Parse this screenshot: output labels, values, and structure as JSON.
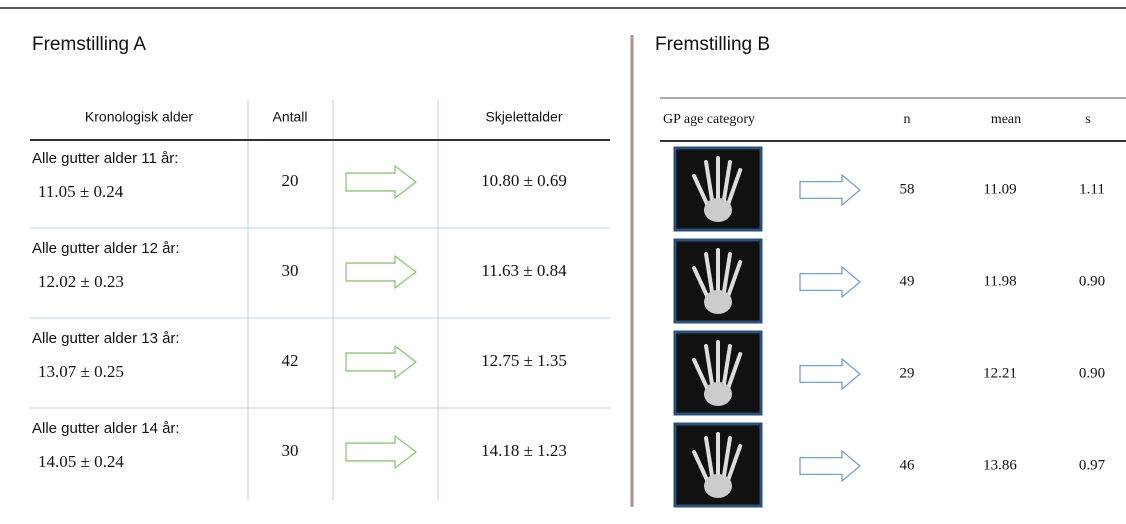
{
  "panel_a": {
    "title": "Fremstilling A",
    "headers": [
      "Kronologisk alder",
      "Antall",
      "Skjelettalder"
    ],
    "rows": [
      {
        "label": "Alle gutter alder 11 år:",
        "age": "11.05 ± 0.24",
        "count": "20",
        "bone_age": "10.80 ± 0.69"
      },
      {
        "label": "Alle gutter alder 12 år:",
        "age": "12.02 ± 0.23",
        "count": "30",
        "bone_age": "11.63 ± 0.84"
      },
      {
        "label": "Alle gutter alder 13 år:",
        "age": "13.07 ± 0.25",
        "count": "42",
        "bone_age": "12.75 ± 1.35"
      },
      {
        "label": "Alle gutter alder 14 år:",
        "age": "14.05 ± 0.24",
        "count": "30",
        "bone_age": "14.18 ± 1.23"
      }
    ]
  },
  "panel_b": {
    "title": "Fremstilling B",
    "headers": [
      "GP age category",
      "n",
      "mean",
      "s"
    ],
    "rows": [
      {
        "n": "58",
        "mean": "11.09",
        "s": "1.11"
      },
      {
        "n": "49",
        "mean": "11.98",
        "s": "0.90"
      },
      {
        "n": "29",
        "mean": "12.21",
        "s": "0.90"
      },
      {
        "n": "46",
        "mean": "13.86",
        "s": "0.97"
      }
    ]
  }
}
